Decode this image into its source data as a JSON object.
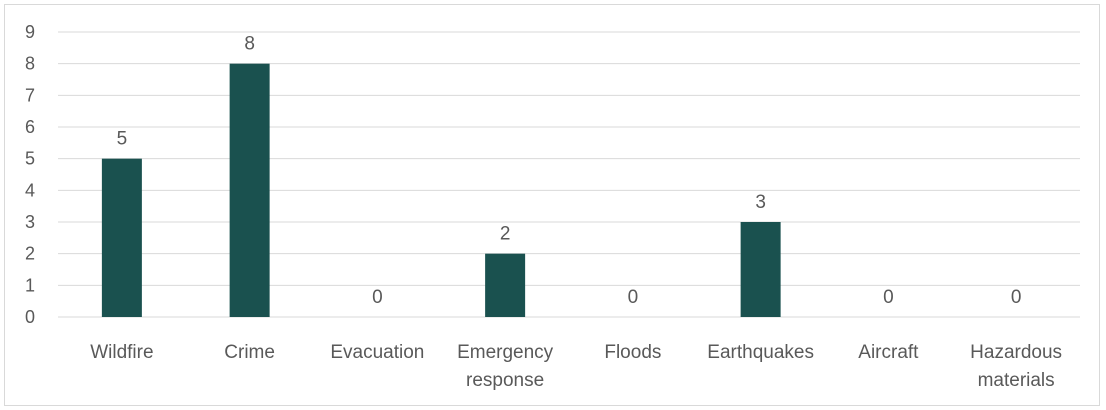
{
  "chart_data": {
    "type": "bar",
    "categories": [
      [
        "Wildfire"
      ],
      [
        "Crime"
      ],
      [
        "Evacuation"
      ],
      [
        "Emergency",
        "response"
      ],
      [
        "Floods"
      ],
      [
        "Earthquakes"
      ],
      [
        "Aircraft"
      ],
      [
        "Hazardous",
        "materials"
      ]
    ],
    "values": [
      5,
      8,
      0,
      2,
      0,
      3,
      0,
      0
    ],
    "data_labels": [
      "5",
      "8",
      "0",
      "2",
      "0",
      "3",
      "0",
      "0"
    ],
    "title": "",
    "xlabel": "",
    "ylabel": "",
    "ylim": [
      0,
      9
    ],
    "yticks": [
      "0",
      "1",
      "2",
      "3",
      "4",
      "5",
      "6",
      "7",
      "8",
      "9"
    ],
    "grid": true,
    "legend": "none",
    "bar_color": "#1a514f",
    "grid_color": "#d9d9d9"
  }
}
